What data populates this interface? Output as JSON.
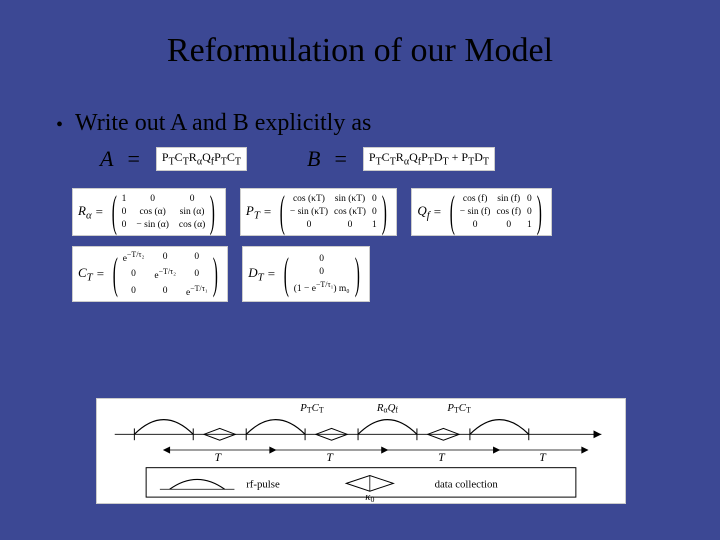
{
  "background_color": "#3c4894",
  "text_color": "#000000",
  "box_bg": "#ffffff",
  "title": "Reformulation of our Model",
  "bullet": "Write out A and B explicitly as",
  "eq": {
    "A_label": "A",
    "B_label": "B",
    "equals": "=",
    "A_formula_html": "P<sub>T</sub>C<sub>T</sub>R<sub>α</sub>Q<sub>f</sub>P<sub>T</sub>C<sub>T</sub>",
    "B_formula_html": "P<sub>T</sub>C<sub>T</sub>R<sub>α</sub>Q<sub>f</sub>P<sub>T</sub>D<sub>T</sub> + P<sub>T</sub>D<sub>T</sub>"
  },
  "matrices_row1": [
    {
      "label_html": "R<sub>α</sub>",
      "cells": [
        "1",
        "0",
        "0",
        "0",
        "cos (α)",
        "sin (α)",
        "0",
        "− sin (α)",
        "cos (α)"
      ],
      "cols": "m3"
    },
    {
      "label_html": "P<sub>T</sub>",
      "cells": [
        "cos (κT)",
        "sin (κT)",
        "0",
        "− sin (κT)",
        "cos (κT)",
        "0",
        "0",
        "0",
        "1"
      ],
      "cols": "m3b"
    },
    {
      "label_html": "Q<sub>f</sub>",
      "cells": [
        "cos (f)",
        "sin (f)",
        "0",
        "− sin (f)",
        "cos (f)",
        "0",
        "0",
        "0",
        "1"
      ],
      "cols": "m3b"
    }
  ],
  "matrices_row2": [
    {
      "label_html": "C<sub>T</sub>",
      "cells": [
        "e<sup>−T/τ₂</sup>",
        "0",
        "0",
        "0",
        "e<sup>−T/τ₂</sup>",
        "0",
        "0",
        "0",
        "e<sup>−T/τ₁</sup>"
      ],
      "cols": "m3"
    },
    {
      "label_html": "D<sub>T</sub>",
      "cells": [
        "0",
        "0",
        "(1 − e<sup>−T/τ₁</sup>) m₀"
      ],
      "cols": "m1"
    }
  ],
  "diagram": {
    "top_labels": {
      "left": "P_T C_T",
      "center": "R_α Q_f",
      "right": "P_T C_T"
    },
    "T_label": "T",
    "rf_label": "rf-pulse",
    "k0_label": "κ₀",
    "data_label": "data collection",
    "stroke": "#000000",
    "thin_stroke": "#555555"
  }
}
